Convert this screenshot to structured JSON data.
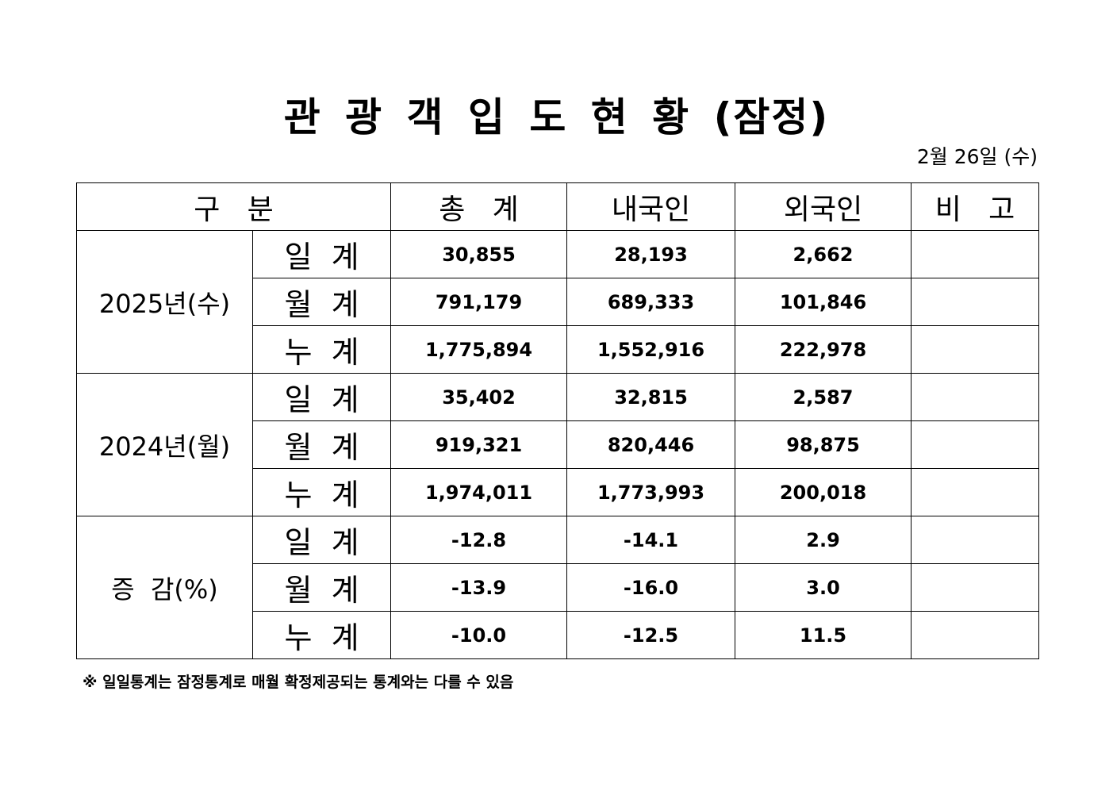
{
  "title": "관 광 객 입 도 현 황 (잠정)",
  "date": "2월 26일 (수)",
  "table": {
    "headers": {
      "category": "구   분",
      "total": "총   계",
      "domestic": "내국인",
      "foreign": "외국인",
      "remarks": "비   고"
    },
    "groups": [
      {
        "label": "2025년(수)",
        "rows": [
          {
            "label": "일  계",
            "total": "30,855",
            "domestic": "28,193",
            "foreign": "2,662",
            "remarks": ""
          },
          {
            "label": "월  계",
            "total": "791,179",
            "domestic": "689,333",
            "foreign": "101,846",
            "remarks": ""
          },
          {
            "label": "누  계",
            "total": "1,775,894",
            "domestic": "1,552,916",
            "foreign": "222,978",
            "remarks": ""
          }
        ]
      },
      {
        "label": "2024년(월)",
        "rows": [
          {
            "label": "일  계",
            "total": "35,402",
            "domestic": "32,815",
            "foreign": "2,587",
            "remarks": ""
          },
          {
            "label": "월  계",
            "total": "919,321",
            "domestic": "820,446",
            "foreign": "98,875",
            "remarks": ""
          },
          {
            "label": "누  계",
            "total": "1,974,011",
            "domestic": "1,773,993",
            "foreign": "200,018",
            "remarks": ""
          }
        ]
      },
      {
        "label": "증  감(%)",
        "rows": [
          {
            "label": "일  계",
            "total": "-12.8",
            "domestic": "-14.1",
            "foreign": "2.9",
            "remarks": ""
          },
          {
            "label": "월  계",
            "total": "-13.9",
            "domestic": "-16.0",
            "foreign": "3.0",
            "remarks": ""
          },
          {
            "label": "누  계",
            "total": "-10.0",
            "domestic": "-12.5",
            "foreign": "11.5",
            "remarks": ""
          }
        ]
      }
    ]
  },
  "footnote": "※ 일일통계는 잠정통계로 매월 확정제공되는 통계와는 다를 수 있음"
}
